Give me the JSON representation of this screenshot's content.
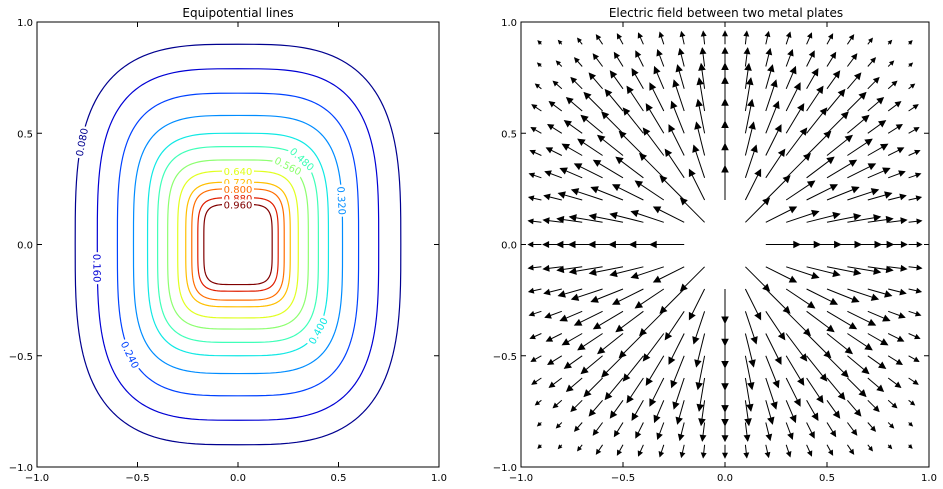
{
  "chart_data": [
    {
      "type": "contour",
      "title": "Equipotential lines",
      "xlim": [
        -1.0,
        1.0
      ],
      "ylim": [
        -1.0,
        1.0
      ],
      "x_ticks": [
        "−1.0",
        "−0.5",
        "0.0",
        "0.5",
        "1.0"
      ],
      "y_ticks": [
        "−1.0",
        "−0.5",
        "0.0",
        "0.5",
        "1.0"
      ],
      "grid": false,
      "levels": [
        {
          "value": 0.08,
          "label": "0.080",
          "color": "#00008f",
          "half_w": 0.81,
          "half_h": 0.9
        },
        {
          "value": 0.16,
          "label": "0.160",
          "color": "#0000d4",
          "half_w": 0.7,
          "half_h": 0.79
        },
        {
          "value": 0.24,
          "label": "0.240",
          "color": "#0042ff",
          "half_w": 0.6,
          "half_h": 0.68
        },
        {
          "value": 0.32,
          "label": "0.320",
          "color": "#008cff",
          "half_w": 0.52,
          "half_h": 0.58
        },
        {
          "value": 0.4,
          "label": "0.400",
          "color": "#10e8e4",
          "half_w": 0.45,
          "half_h": 0.5
        },
        {
          "value": 0.48,
          "label": "0.480",
          "color": "#3fffb8",
          "half_w": 0.4,
          "half_h": 0.44
        },
        {
          "value": 0.56,
          "label": "0.560",
          "color": "#8dff70",
          "half_w": 0.35,
          "half_h": 0.38
        },
        {
          "value": 0.64,
          "label": "0.640",
          "color": "#e1ff1f",
          "half_w": 0.3,
          "half_h": 0.33
        },
        {
          "value": 0.72,
          "label": "0.720",
          "color": "#ffbf00",
          "half_w": 0.26,
          "half_h": 0.28
        },
        {
          "value": 0.8,
          "label": "0.800",
          "color": "#ff6d00",
          "half_w": 0.23,
          "half_h": 0.25
        },
        {
          "value": 0.88,
          "label": "0.880",
          "color": "#df1e00",
          "half_w": 0.2,
          "half_h": 0.21
        },
        {
          "value": 0.96,
          "label": "0.960",
          "color": "#800000",
          "half_w": 0.17,
          "half_h": 0.18
        }
      ]
    },
    {
      "type": "quiver",
      "title": "Electric field between two metal plates",
      "xlim": [
        -1.0,
        1.0
      ],
      "ylim": [
        -1.0,
        1.0
      ],
      "x_ticks": [
        "−1.0",
        "−0.5",
        "0.0",
        "0.5",
        "1.0"
      ],
      "y_ticks": [
        "−1.0",
        "−0.5",
        "0.0",
        "0.5",
        "1.0"
      ],
      "grid": false,
      "grid_x": [
        -0.9,
        -0.8,
        -0.7,
        -0.6,
        -0.5,
        -0.4,
        -0.3,
        -0.2,
        -0.1,
        0.0,
        0.1,
        0.2,
        0.3,
        0.4,
        0.5,
        0.6,
        0.7,
        0.8,
        0.9
      ],
      "grid_y": [
        0.9,
        0.8,
        0.7,
        0.6,
        0.5,
        0.4,
        0.3,
        0.2,
        0.1,
        0.0,
        -0.1,
        -0.2,
        -0.3,
        -0.4,
        -0.5,
        -0.6,
        -0.7,
        -0.8,
        -0.9
      ],
      "field": "radial, directed away from the central plate region"
    }
  ]
}
